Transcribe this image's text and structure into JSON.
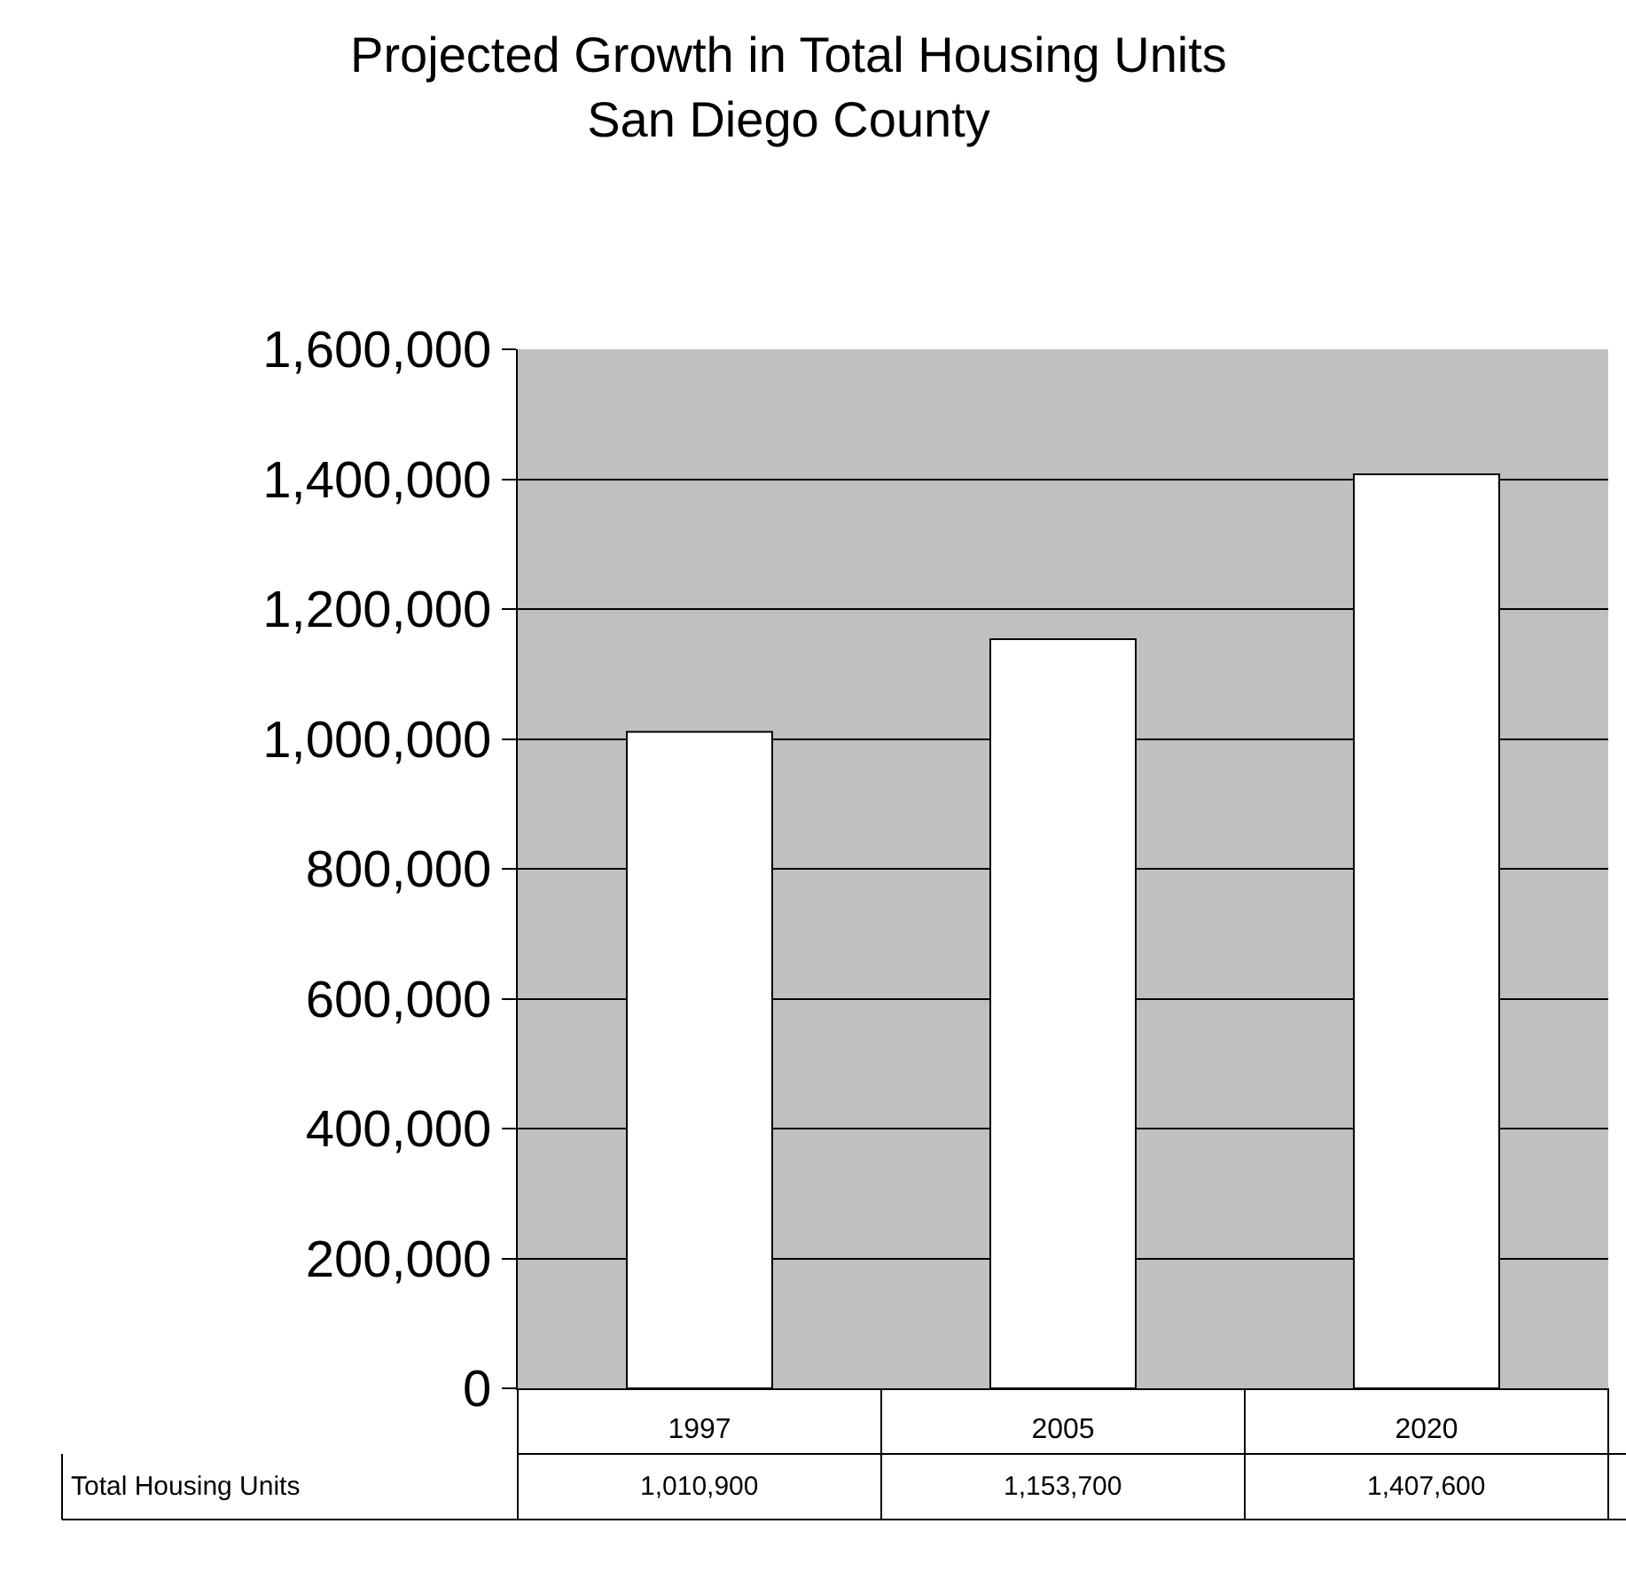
{
  "chart_data": {
    "type": "bar",
    "title": "Projected Growth in Total Housing Units\nSan Diego County",
    "categories": [
      "1997",
      "2005",
      "2020"
    ],
    "series": [
      {
        "name": "Total Housing Units",
        "color": "#ffffff",
        "values": [
          1010900,
          1153700,
          1407600
        ],
        "value_labels": [
          "1,010,900",
          "1,153,700",
          "1,407,600"
        ]
      }
    ],
    "ylim": [
      0,
      1600000
    ],
    "yticks": [
      0,
      {
        "value": 200000,
        "label": "200,000"
      },
      {
        "value": 400000,
        "label": "400,000"
      },
      {
        "value": 600000,
        "label": "600,000"
      },
      {
        "value": 800000,
        "label": "800,000"
      },
      {
        "value": 1000000,
        "label": "1,000,000"
      },
      {
        "value": 1200000,
        "label": "1,200,000"
      },
      {
        "value": 1400000,
        "label": "1,400,000"
      },
      {
        "value": 1600000,
        "label": "1,600,000"
      }
    ],
    "grid": "y",
    "legend": false
  }
}
